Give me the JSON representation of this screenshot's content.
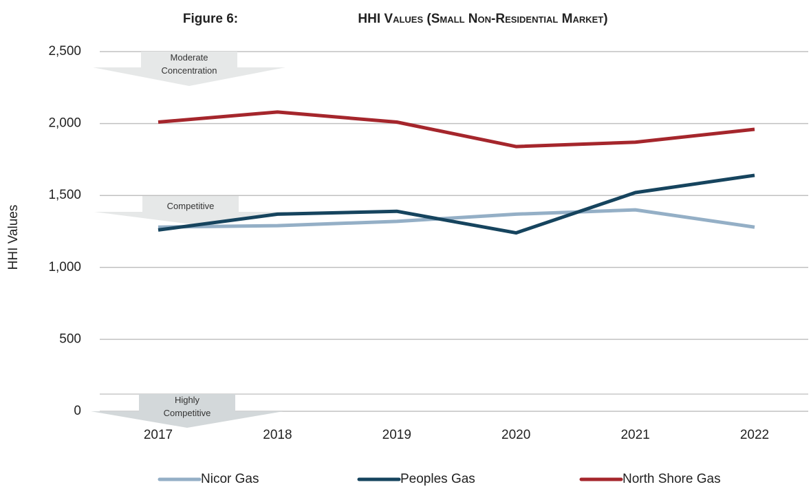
{
  "chart_data": {
    "type": "line",
    "figure_label": "Figure 6:",
    "title": "HHI Values (Small Non-Residential Market)",
    "y_label": "HHI Values",
    "x": [
      2017,
      2018,
      2019,
      2020,
      2021,
      2022
    ],
    "series": [
      {
        "name": "Nicor Gas",
        "color": "#94afc6",
        "values": [
          1280,
          1290,
          1320,
          1370,
          1400,
          1280
        ]
      },
      {
        "name": "Peoples Gas",
        "color": "#16445e",
        "values": [
          1260,
          1370,
          1390,
          1240,
          1520,
          1640
        ]
      },
      {
        "name": "North Shore Gas",
        "color": "#a5262c",
        "values": [
          2010,
          2080,
          2010,
          1840,
          1870,
          1960
        ]
      }
    ],
    "ylim": [
      0,
      2500
    ],
    "yticks": [
      0,
      {
        "value": 500,
        "label": "500"
      },
      {
        "value": 1000,
        "label": "1,000"
      },
      {
        "value": 1500,
        "label": "1,500"
      },
      {
        "value": 2000,
        "label": "2,000"
      },
      {
        "value": 2500,
        "label": "2,500"
      }
    ],
    "grid": true,
    "annotations": [
      "Moderate Concentration",
      "Competitive",
      "Highly Competitive"
    ],
    "legend": "bottom"
  }
}
